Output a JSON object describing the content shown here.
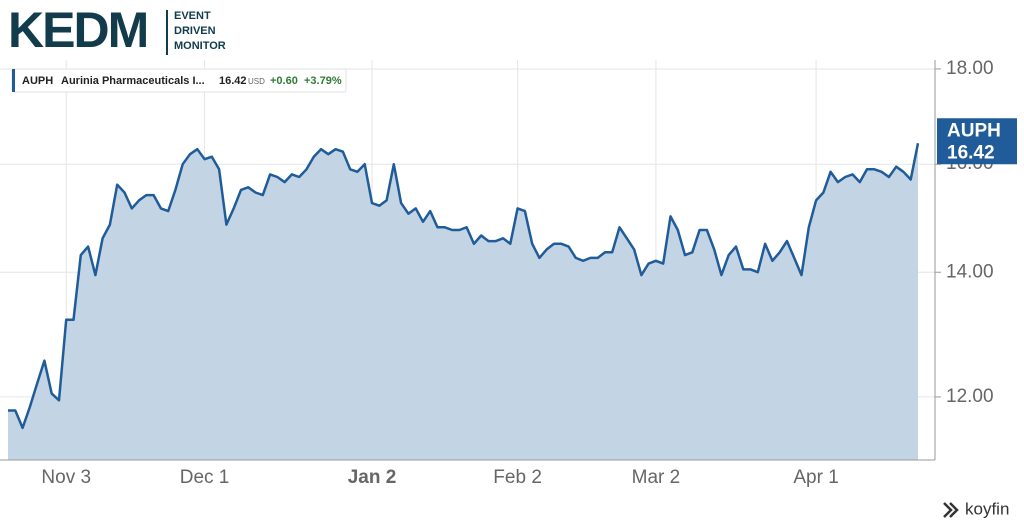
{
  "logo": {
    "main": "KEDM",
    "lines": [
      "EVENT",
      "DRIVEN",
      "MONITOR"
    ]
  },
  "watermark": "koyfin",
  "chart_data": {
    "type": "area",
    "legend": {
      "ticker": "AUPH",
      "name": "Aurinia Pharmaceuticals I...",
      "price": "16.42",
      "currency": "USD",
      "change": "+0.60",
      "change_pct": "+3.79%"
    },
    "categories": [
      null,
      null,
      null,
      null,
      null,
      null,
      null,
      null,
      "Nov 3",
      null,
      null,
      null,
      null,
      null,
      null,
      null,
      null,
      null,
      null,
      null,
      null,
      null,
      null,
      null,
      null,
      null,
      null,
      "Dec 1",
      null,
      null,
      null,
      null,
      null,
      null,
      null,
      null,
      null,
      null,
      null,
      null,
      null,
      null,
      null,
      null,
      null,
      null,
      null,
      null,
      null,
      null,
      "Jan 2",
      null,
      null,
      null,
      null,
      null,
      null,
      null,
      null,
      null,
      null,
      null,
      null,
      null,
      null,
      null,
      null,
      null,
      null,
      null,
      "Feb 2",
      null,
      null,
      null,
      null,
      null,
      null,
      null,
      null,
      null,
      null,
      null,
      null,
      null,
      null,
      null,
      null,
      null,
      null,
      "Mar 2",
      null,
      null,
      null,
      null,
      null,
      null,
      null,
      null,
      null,
      null,
      null,
      null,
      null,
      null,
      null,
      null,
      null,
      null,
      null,
      null,
      null,
      "Apr 1",
      null,
      null,
      null,
      null,
      null,
      null,
      null,
      null,
      null,
      null,
      null,
      null,
      null,
      null
    ],
    "series": [
      {
        "name": "AUPH",
        "color": "#1f5c99",
        "fill": "#c3d5e5",
        "values": [
          11.8,
          11.8,
          11.55,
          11.85,
          12.2,
          12.55,
          12.05,
          11.95,
          13.2,
          13.2,
          14.3,
          14.45,
          13.95,
          14.6,
          14.85,
          15.6,
          15.45,
          15.15,
          15.3,
          15.4,
          15.4,
          15.15,
          15.1,
          15.5,
          16.0,
          16.2,
          16.3,
          16.1,
          16.15,
          15.9,
          14.85,
          15.15,
          15.5,
          15.55,
          15.45,
          15.4,
          15.8,
          15.75,
          15.65,
          15.8,
          15.75,
          15.9,
          16.15,
          16.3,
          16.2,
          16.3,
          16.25,
          15.9,
          15.85,
          16.0,
          15.25,
          15.2,
          15.3,
          16.0,
          15.25,
          15.05,
          15.15,
          14.9,
          15.1,
          14.8,
          14.8,
          14.75,
          14.75,
          14.8,
          14.5,
          14.65,
          14.55,
          14.55,
          14.6,
          14.5,
          15.15,
          15.1,
          14.5,
          14.25,
          14.4,
          14.5,
          14.5,
          14.45,
          14.25,
          14.2,
          14.25,
          14.25,
          14.35,
          14.35,
          14.8,
          14.6,
          14.4,
          13.95,
          14.15,
          14.2,
          14.15,
          15.0,
          14.75,
          14.3,
          14.35,
          14.75,
          14.75,
          14.4,
          13.95,
          14.3,
          14.45,
          14.05,
          14.05,
          14.0,
          14.5,
          14.2,
          14.35,
          14.55,
          14.25,
          13.95,
          14.8,
          15.3,
          15.45,
          15.85,
          15.65,
          15.75,
          15.8,
          15.65,
          15.9,
          15.9,
          15.85,
          15.75,
          15.95,
          15.85,
          15.7,
          16.42
        ]
      }
    ],
    "ylim": [
      11.1,
      18.2
    ],
    "yticks": [
      {
        "value": 12,
        "label": "12.00"
      },
      {
        "value": 14,
        "label": "14.00"
      },
      {
        "value": 16,
        "label": "16.00"
      },
      {
        "value": 18,
        "label": "18.00"
      }
    ],
    "log_scale": true,
    "grid": true
  }
}
